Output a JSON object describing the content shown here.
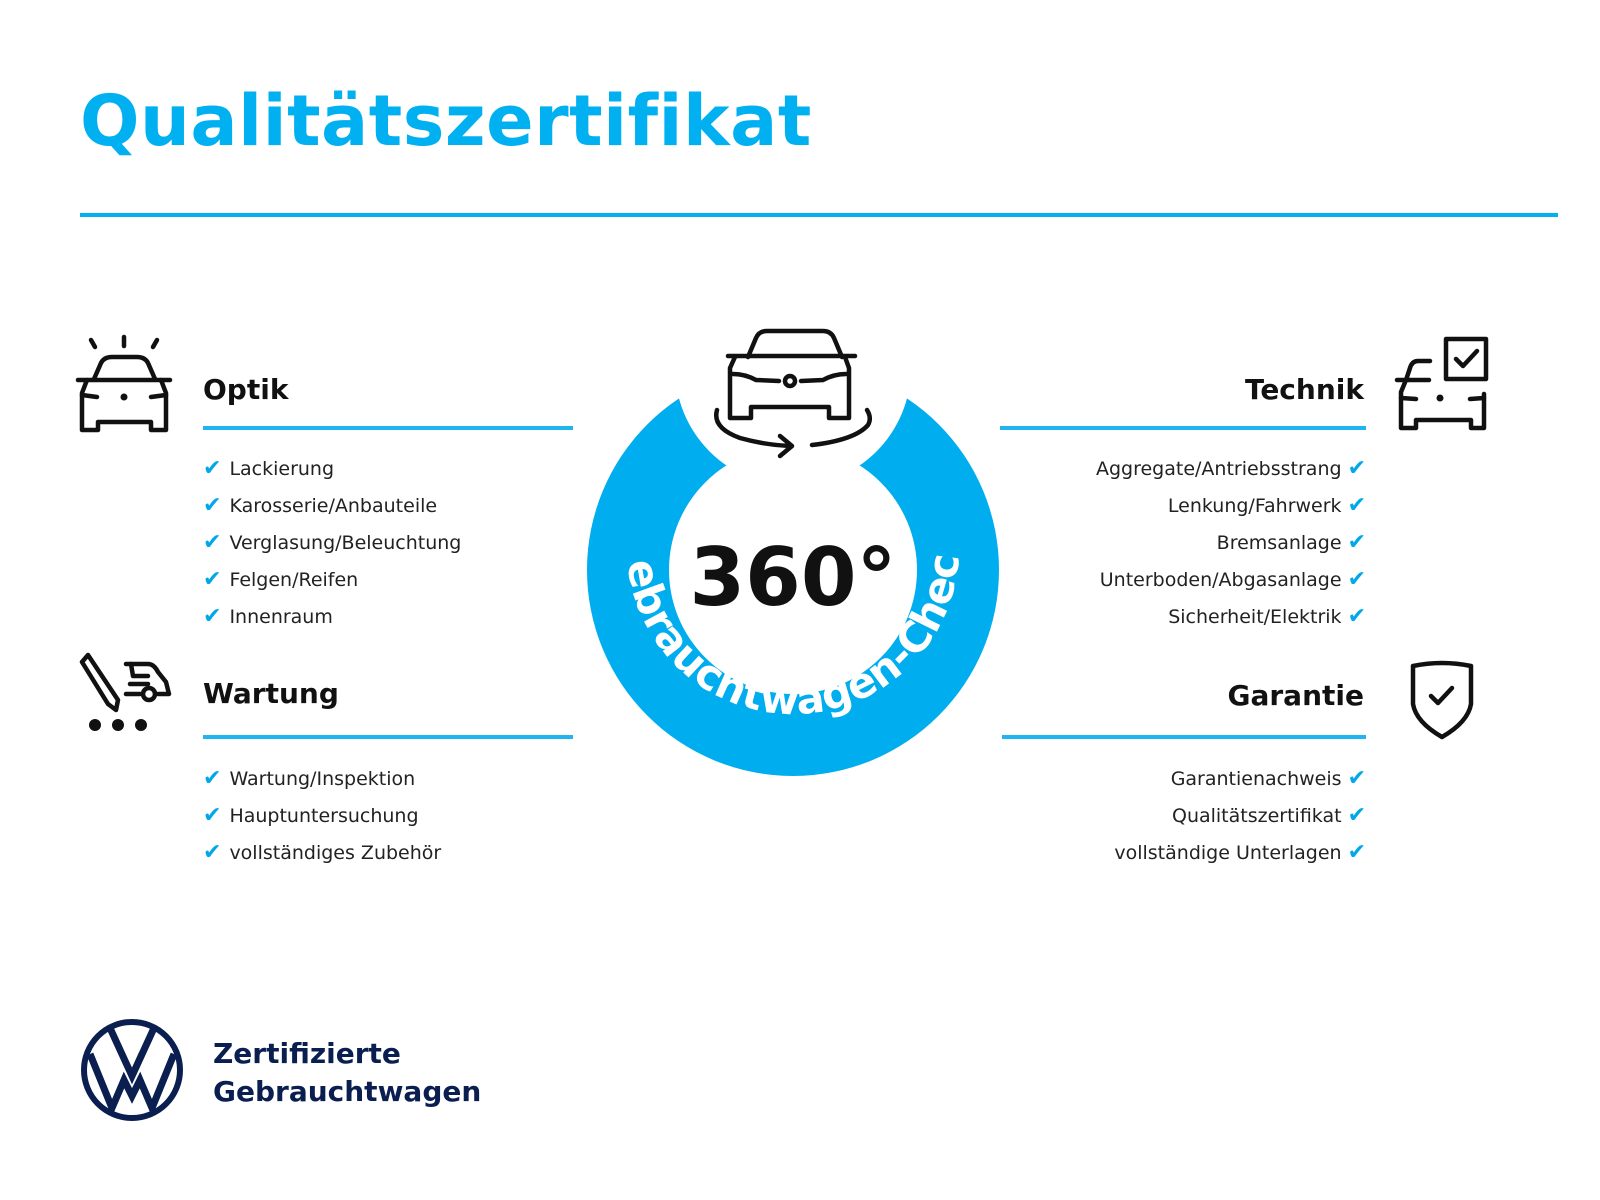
{
  "title": "Qualitätszertifikat",
  "colors": {
    "accent": "#00b0f0",
    "brand_dark": "#0a1e50",
    "text": "#111111"
  },
  "center": {
    "big_text": "360°",
    "ring_text": "Gebrauchtwagen-Check",
    "icon": "car-rotate-icon"
  },
  "sections": {
    "optik": {
      "heading": "Optik",
      "icon": "car-lights-icon",
      "items": [
        "Lackierung",
        "Karosserie/Anbauteile",
        "Verglasung/Beleuchtung",
        "Felgen/Reifen",
        "Innenraum"
      ]
    },
    "wartung": {
      "heading": "Wartung",
      "icon": "service-wrench-car-icon",
      "items": [
        "Wartung/Inspektion",
        "Hauptuntersuchung",
        "vollständiges Zubehör"
      ]
    },
    "technik": {
      "heading": "Technik",
      "icon": "car-checkbox-icon",
      "items": [
        "Aggregate/Antriebsstrang",
        "Lenkung/Fahrwerk",
        "Bremsanlage",
        "Unterboden/Abgasanlage",
        "Sicherheit/Elektrik"
      ]
    },
    "garantie": {
      "heading": "Garantie",
      "icon": "shield-check-icon",
      "items": [
        "Garantienachweis",
        "Qualitätszertifikat",
        "vollständige Unterlagen"
      ]
    }
  },
  "check_glyph": "✔",
  "footer": {
    "logo": "VW",
    "line1": "Zertifizierte",
    "line2": "Gebrauchtwagen"
  }
}
